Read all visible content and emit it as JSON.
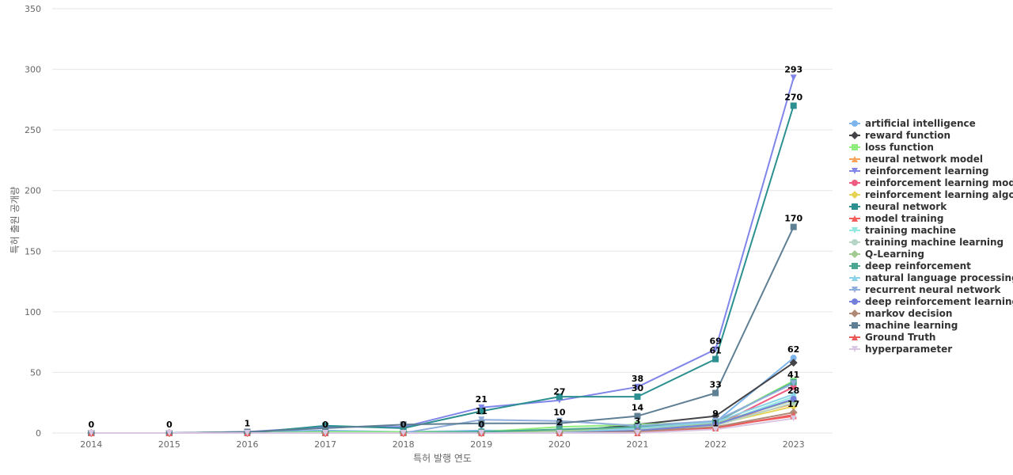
{
  "chart_data": {
    "type": "line",
    "xlabel": "특허 발행 연도",
    "ylabel": "특허 출원 공개량",
    "ylim": [
      0,
      350
    ],
    "yticks": [
      0,
      50,
      100,
      150,
      200,
      250,
      300,
      350
    ],
    "x": [
      "2014",
      "2015",
      "2016",
      "2017",
      "2018",
      "2019",
      "2020",
      "2021",
      "2022",
      "2023"
    ],
    "grid": true,
    "legend_position": "right",
    "series": [
      {
        "name": "artificial intelligence",
        "color": "#7cb5ec",
        "marker": "circle",
        "values": [
          0,
          0,
          1,
          2,
          1,
          2,
          2,
          5,
          9,
          62
        ]
      },
      {
        "name": "reward function",
        "color": "#434348",
        "marker": "diamond",
        "values": [
          0,
          0,
          0,
          1,
          1,
          1,
          1,
          7,
          14,
          58
        ]
      },
      {
        "name": "loss function",
        "color": "#90ed7d",
        "marker": "square",
        "values": [
          0,
          0,
          0,
          1,
          1,
          1,
          5,
          7,
          9,
          43
        ]
      },
      {
        "name": "neural network model",
        "color": "#f7a35c",
        "marker": "triangle",
        "values": [
          0,
          0,
          0,
          0,
          0,
          0,
          1,
          2,
          8,
          24
        ]
      },
      {
        "name": "reinforcement learning",
        "color": "#8085e9",
        "marker": "triangle-down",
        "values": [
          0,
          0,
          1,
          5,
          5,
          21,
          27,
          38,
          69,
          293
        ]
      },
      {
        "name": "reinforcement learning model",
        "color": "#f15c80",
        "marker": "circle",
        "values": [
          0,
          0,
          0,
          0,
          0,
          0,
          0,
          1,
          6,
          38
        ]
      },
      {
        "name": "reinforcement learning algo...",
        "color": "#e4d354",
        "marker": "diamond",
        "values": [
          0,
          0,
          0,
          0,
          0,
          0,
          1,
          2,
          7,
          22
        ]
      },
      {
        "name": "neural network",
        "color": "#2b908f",
        "marker": "square",
        "values": [
          0,
          0,
          0,
          6,
          4,
          18,
          30,
          30,
          61,
          270
        ]
      },
      {
        "name": "model training",
        "color": "#f45b5b",
        "marker": "triangle",
        "values": [
          0,
          0,
          0,
          0,
          0,
          0,
          0,
          0,
          5,
          14
        ]
      },
      {
        "name": "training machine",
        "color": "#91e8e1",
        "marker": "triangle-down",
        "values": [
          0,
          0,
          0,
          0,
          0,
          0,
          1,
          3,
          7,
          30
        ]
      },
      {
        "name": "training machine learning",
        "color": "#b5d6c7",
        "marker": "circle",
        "values": [
          0,
          0,
          0,
          0,
          0,
          0,
          1,
          3,
          6,
          25
        ]
      },
      {
        "name": "Q-Learning",
        "color": "#a3c98f",
        "marker": "diamond",
        "values": [
          0,
          0,
          0,
          0,
          0,
          0,
          2,
          4,
          8,
          27
        ]
      },
      {
        "name": "deep reinforcement",
        "color": "#4aa893",
        "marker": "square",
        "values": [
          0,
          0,
          0,
          0,
          0,
          1,
          3,
          5,
          9,
          42
        ]
      },
      {
        "name": "natural language processing",
        "color": "#8dd3e8",
        "marker": "triangle",
        "values": [
          0,
          0,
          0,
          0,
          0,
          0,
          0,
          4,
          9,
          32
        ]
      },
      {
        "name": "recurrent neural network",
        "color": "#90aedb",
        "marker": "triangle-down",
        "values": [
          0,
          0,
          0,
          0,
          0,
          11,
          10,
          6,
          10,
          41
        ]
      },
      {
        "name": "deep reinforcement learning",
        "color": "#7380d9",
        "marker": "circle",
        "values": [
          0,
          0,
          0,
          0,
          0,
          0,
          0,
          2,
          7,
          28
        ]
      },
      {
        "name": "markov decision",
        "color": "#b08a78",
        "marker": "diamond",
        "values": [
          0,
          0,
          0,
          0,
          0,
          0,
          0,
          1,
          5,
          17
        ]
      },
      {
        "name": "machine learning",
        "color": "#5f7f94",
        "marker": "square",
        "values": [
          0,
          0,
          1,
          4,
          7,
          8,
          8,
          14,
          33,
          170
        ]
      },
      {
        "name": "Ground Truth",
        "color": "#ea5b5b",
        "marker": "triangle",
        "values": [
          0,
          0,
          0,
          0,
          0,
          0,
          0,
          0,
          4,
          15
        ]
      },
      {
        "name": "hyperparameter",
        "color": "#d9c7e3",
        "marker": "triangle-down",
        "values": [
          0,
          0,
          0,
          0,
          0,
          0,
          0,
          0,
          3,
          12
        ]
      }
    ],
    "data_labels": [
      {
        "x": "2014",
        "text": "0",
        "value": 0
      },
      {
        "x": "2015",
        "text": "0",
        "value": 0
      },
      {
        "x": "2016",
        "text": "1",
        "value": 1
      },
      {
        "x": "2017",
        "text": "0",
        "value": 0
      },
      {
        "x": "2018",
        "text": "0",
        "value": 0
      },
      {
        "x": "2019",
        "text": "21",
        "value": 21
      },
      {
        "x": "2019",
        "text": "11",
        "value": 11
      },
      {
        "x": "2019",
        "text": "0",
        "value": 0
      },
      {
        "x": "2020",
        "text": "27",
        "value": 27
      },
      {
        "x": "2020",
        "text": "10",
        "value": 10
      },
      {
        "x": "2020",
        "text": "2",
        "value": 2
      },
      {
        "x": "2021",
        "text": "38",
        "value": 38
      },
      {
        "x": "2021",
        "text": "30",
        "value": 30
      },
      {
        "x": "2021",
        "text": "14",
        "value": 14
      },
      {
        "x": "2021",
        "text": "3",
        "value": 3
      },
      {
        "x": "2022",
        "text": "69",
        "value": 69
      },
      {
        "x": "2022",
        "text": "61",
        "value": 61
      },
      {
        "x": "2022",
        "text": "33",
        "value": 33
      },
      {
        "x": "2022",
        "text": "9",
        "value": 9
      },
      {
        "x": "2022",
        "text": "1",
        "value": 1
      },
      {
        "x": "2023",
        "text": "293",
        "value": 293
      },
      {
        "x": "2023",
        "text": "270",
        "value": 270
      },
      {
        "x": "2023",
        "text": "170",
        "value": 170
      },
      {
        "x": "2023",
        "text": "62",
        "value": 62
      },
      {
        "x": "2023",
        "text": "41",
        "value": 41
      },
      {
        "x": "2023",
        "text": "28",
        "value": 28
      },
      {
        "x": "2023",
        "text": "17",
        "value": 17
      }
    ]
  }
}
